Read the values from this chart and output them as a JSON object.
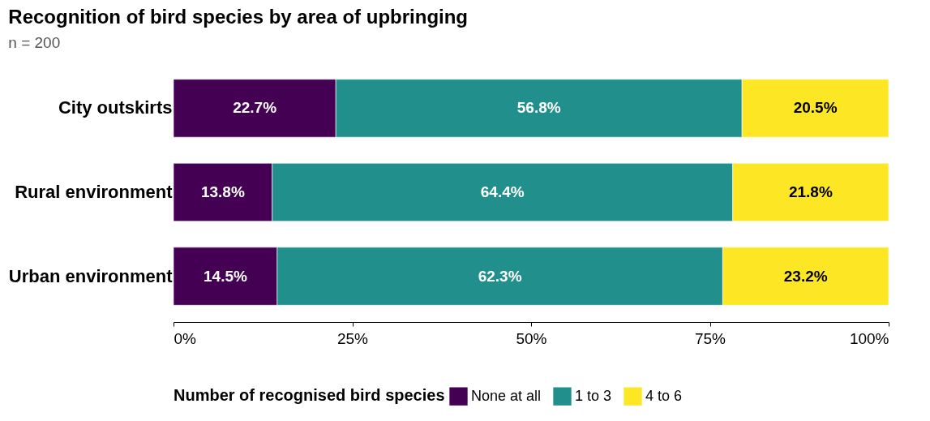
{
  "chart_data": {
    "type": "bar",
    "orientation": "horizontal",
    "stacked": true,
    "title": "Recognition of bird species by area of upbringing",
    "subtitle": "n = 200",
    "legend_title": "Number of recognised bird species",
    "legend": "bottom",
    "grid": false,
    "categories": [
      "City outskirts",
      "Rural environment",
      "Urban environment"
    ],
    "series": [
      {
        "name": "None at all",
        "color": "#440154",
        "values": [
          22.7,
          13.8,
          14.5
        ],
        "value_labels": [
          "22.7%",
          "13.8%",
          "14.5%"
        ]
      },
      {
        "name": "1 to 3",
        "color": "#21908c",
        "values": [
          56.8,
          64.4,
          62.3
        ],
        "value_labels": [
          "56.8%",
          "64.4%",
          "62.3%"
        ]
      },
      {
        "name": "4 to 6",
        "color": "#fde725",
        "values": [
          20.5,
          21.8,
          23.2
        ],
        "value_labels": [
          "20.5%",
          "21.8%",
          "23.2%"
        ]
      }
    ],
    "xlim": [
      0,
      100
    ],
    "xticks": [
      {
        "value": 0,
        "label": "0%"
      },
      {
        "value": 25,
        "label": "25%"
      },
      {
        "value": 50,
        "label": "50%"
      },
      {
        "value": 75,
        "label": "75%"
      },
      {
        "value": 100,
        "label": "100%"
      }
    ]
  }
}
